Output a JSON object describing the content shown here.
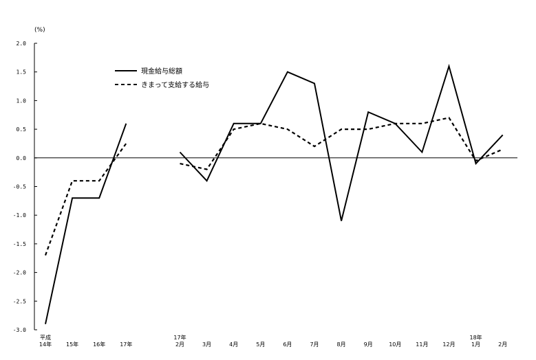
{
  "chart_data": {
    "type": "line",
    "unit_label": "(%)",
    "ylim": [
      -3.0,
      2.0
    ],
    "y_ticks": [
      "2.0",
      "1.5",
      "1.0",
      "0.5",
      "0.0",
      "-0.5",
      "-1.0",
      "-1.5",
      "-2.0",
      "-2.5",
      "-3.0"
    ],
    "categories": [
      [
        "平成",
        "14年"
      ],
      [
        "15年"
      ],
      [
        "16年"
      ],
      [
        "17年"
      ],
      [
        "17年",
        "2月"
      ],
      [
        "3月"
      ],
      [
        "4月"
      ],
      [
        "5月"
      ],
      [
        "6月"
      ],
      [
        "7月"
      ],
      [
        "8月"
      ],
      [
        "9月"
      ],
      [
        "10月"
      ],
      [
        "11月"
      ],
      [
        "12月"
      ],
      [
        "18年",
        "1月"
      ],
      [
        "2月"
      ]
    ],
    "category_slots": [
      0,
      1,
      2,
      3,
      5,
      6,
      7,
      8,
      9,
      10,
      11,
      12,
      13,
      14,
      15,
      16,
      17
    ],
    "series": [
      {
        "name": "現金給与総額",
        "style": "solid",
        "segments": [
          [
            -2.9,
            -0.7,
            -0.7,
            0.6
          ],
          [
            0.1,
            -0.4,
            0.6,
            0.6,
            1.5,
            1.3,
            -1.1,
            0.8,
            0.6,
            0.1,
            1.6,
            -0.1,
            0.4
          ]
        ]
      },
      {
        "name": "きまって支給する給与",
        "style": "dashed",
        "segments": [
          [
            -1.7,
            -0.4,
            -0.4,
            0.25
          ],
          [
            -0.1,
            -0.2,
            0.5,
            0.6,
            0.5,
            0.2,
            0.5,
            0.5,
            0.6,
            0.6,
            0.7,
            -0.05,
            0.15
          ]
        ]
      }
    ],
    "legend_position": "top-center",
    "grid": false
  }
}
